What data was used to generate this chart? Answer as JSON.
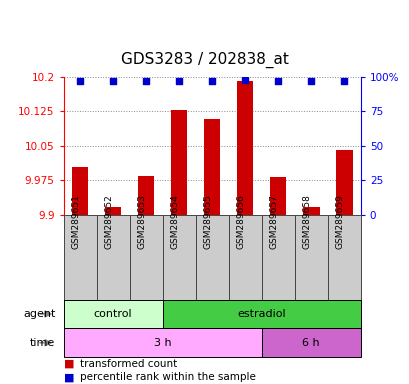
{
  "title": "GDS3283 / 202838_at",
  "samples": [
    "GSM289651",
    "GSM289652",
    "GSM289653",
    "GSM289654",
    "GSM289655",
    "GSM289656",
    "GSM289657",
    "GSM289658",
    "GSM289659"
  ],
  "red_values": [
    10.005,
    9.917,
    9.985,
    10.127,
    10.108,
    10.19,
    9.982,
    9.917,
    10.042
  ],
  "blue_values": [
    97,
    97,
    97,
    97,
    97,
    98,
    97,
    97,
    97
  ],
  "ylim_left": [
    9.9,
    10.2
  ],
  "ylim_right": [
    0,
    100
  ],
  "yticks_left": [
    9.9,
    9.975,
    10.05,
    10.125,
    10.2
  ],
  "yticks_right": [
    0,
    25,
    50,
    75,
    100
  ],
  "ytick_labels_left": [
    "9.9",
    "9.975",
    "10.05",
    "10.125",
    "10.2"
  ],
  "ytick_labels_right": [
    "0",
    "25",
    "50",
    "75",
    "100%"
  ],
  "agent_regions": [
    {
      "text": "control",
      "start": 0,
      "end": 3,
      "facecolor": "#ccffcc",
      "edgecolor": "#000000"
    },
    {
      "text": "estradiol",
      "start": 3,
      "end": 9,
      "facecolor": "#44cc44",
      "edgecolor": "#000000"
    }
  ],
  "time_regions": [
    {
      "text": "3 h",
      "start": 0,
      "end": 6,
      "facecolor": "#ffaaff",
      "edgecolor": "#000000"
    },
    {
      "text": "6 h",
      "start": 6,
      "end": 9,
      "facecolor": "#cc66cc",
      "edgecolor": "#000000"
    }
  ],
  "bar_color": "#cc0000",
  "dot_color": "#0000cc",
  "grid_color": "#888888",
  "background_color": "#ffffff",
  "sample_box_color": "#cccccc",
  "title_fontsize": 11,
  "tick_label_fontsize": 7.5,
  "sample_fontsize": 6.5,
  "annotation_fontsize": 8,
  "legend_fontsize": 7.5
}
